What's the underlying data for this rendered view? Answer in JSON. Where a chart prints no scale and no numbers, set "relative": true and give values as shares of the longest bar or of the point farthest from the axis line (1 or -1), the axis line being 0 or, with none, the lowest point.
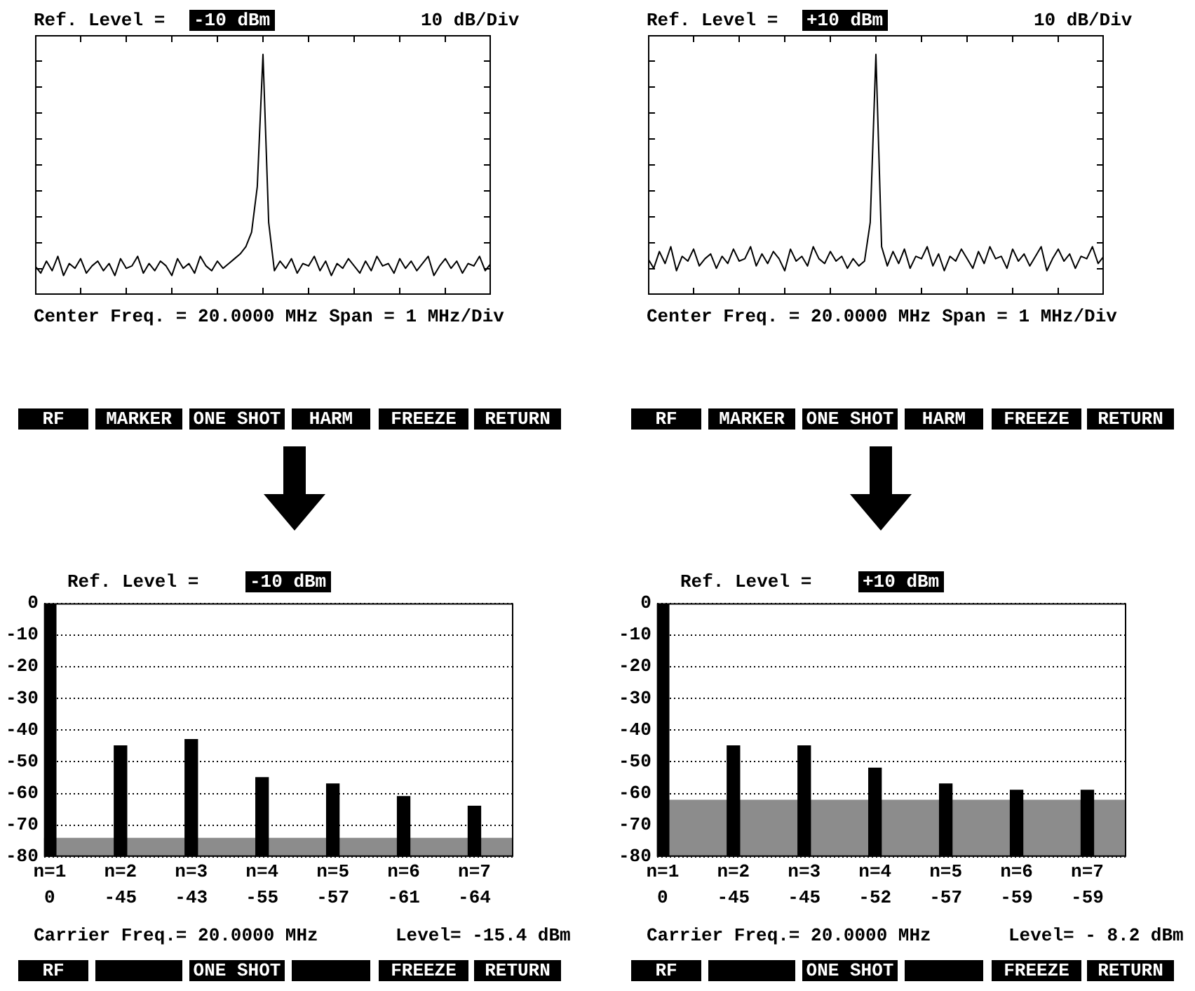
{
  "chart_data": [
    {
      "type": "line",
      "relative": true,
      "color": "#000000",
      "categories": [
        null,
        null,
        null,
        null,
        null,
        null,
        null,
        null,
        null,
        null,
        null,
        null,
        null,
        null,
        null,
        null,
        null,
        null,
        null,
        null,
        null,
        null,
        null,
        null,
        null,
        null,
        null,
        null,
        null,
        null,
        null,
        null,
        null,
        null,
        null,
        null,
        null,
        null,
        null,
        null,
        null,
        null,
        null,
        null,
        null,
        null,
        null,
        null,
        null,
        null,
        null,
        null,
        null,
        null,
        null,
        null,
        null,
        null,
        null,
        null,
        null,
        null,
        null,
        null,
        null,
        null,
        null,
        null,
        null,
        null,
        null,
        null,
        null,
        null,
        null,
        null,
        null,
        null,
        null,
        null,
        null
      ],
      "values": [
        0.12,
        0.09,
        0.14,
        0.1,
        0.16,
        0.08,
        0.13,
        0.11,
        0.15,
        0.09,
        0.12,
        0.14,
        0.1,
        0.13,
        0.08,
        0.15,
        0.11,
        0.12,
        0.16,
        0.09,
        0.13,
        0.1,
        0.14,
        0.12,
        0.08,
        0.15,
        0.11,
        0.13,
        0.09,
        0.16,
        0.12,
        0.1,
        0.14,
        0.11,
        0.13,
        0.15,
        0.17,
        0.2,
        0.26,
        0.45,
        1,
        0.3,
        0.1,
        0.14,
        0.11,
        0.15,
        0.09,
        0.13,
        0.12,
        0.16,
        0.1,
        0.14,
        0.08,
        0.13,
        0.11,
        0.15,
        0.12,
        0.09,
        0.14,
        0.1,
        0.16,
        0.12,
        0.13,
        0.09,
        0.15,
        0.11,
        0.14,
        0.1,
        0.13,
        0.16,
        0.08,
        0.12,
        0.15,
        0.11,
        0.14,
        0.09,
        0.13,
        0.12,
        0.16,
        0.1,
        0.13
      ],
      "annotations": [
        "Ref. Level =",
        "-10 dBm",
        "10 dB/Div",
        "Center Freq. = 20.0000 MHz Span = 1 MHz/Div",
        "RF",
        "MARKER",
        "ONE SHOT",
        "HARM",
        "FREEZE",
        "RETURN"
      ]
    },
    {
      "type": "line",
      "relative": true,
      "color": "#000000",
      "categories": [
        null,
        null,
        null,
        null,
        null,
        null,
        null,
        null,
        null,
        null,
        null,
        null,
        null,
        null,
        null,
        null,
        null,
        null,
        null,
        null,
        null,
        null,
        null,
        null,
        null,
        null,
        null,
        null,
        null,
        null,
        null,
        null,
        null,
        null,
        null,
        null,
        null,
        null,
        null,
        null,
        null,
        null,
        null,
        null,
        null,
        null,
        null,
        null,
        null,
        null,
        null,
        null,
        null,
        null,
        null,
        null,
        null,
        null,
        null,
        null,
        null,
        null,
        null,
        null,
        null,
        null,
        null,
        null,
        null,
        null,
        null,
        null,
        null,
        null,
        null,
        null,
        null,
        null,
        null,
        null,
        null
      ],
      "values": [
        0.15,
        0.11,
        0.18,
        0.13,
        0.2,
        0.1,
        0.16,
        0.14,
        0.19,
        0.12,
        0.15,
        0.17,
        0.11,
        0.16,
        0.13,
        0.19,
        0.14,
        0.15,
        0.2,
        0.12,
        0.17,
        0.13,
        0.18,
        0.15,
        0.1,
        0.19,
        0.14,
        0.16,
        0.12,
        0.2,
        0.15,
        0.13,
        0.18,
        0.14,
        0.16,
        0.11,
        0.15,
        0.12,
        0.14,
        0.3,
        1,
        0.2,
        0.12,
        0.18,
        0.13,
        0.19,
        0.11,
        0.16,
        0.15,
        0.2,
        0.12,
        0.17,
        0.1,
        0.16,
        0.14,
        0.19,
        0.15,
        0.11,
        0.18,
        0.13,
        0.2,
        0.15,
        0.16,
        0.11,
        0.19,
        0.14,
        0.17,
        0.12,
        0.16,
        0.2,
        0.1,
        0.15,
        0.19,
        0.14,
        0.17,
        0.11,
        0.16,
        0.15,
        0.2,
        0.13,
        0.16
      ],
      "annotations": [
        "Ref. Level =",
        "+10 dBm",
        "10 dB/Div",
        "Center Freq. = 20.0000 MHz Span = 1 MHz/Div",
        "RF",
        "MARKER",
        "ONE SHOT",
        "HARM",
        "FREEZE",
        "RETURN"
      ]
    },
    {
      "type": "bar",
      "color": "#000000",
      "categories": [
        "n=1",
        "n=2",
        "n=3",
        "n=4",
        "n=5",
        "n=6",
        "n=7"
      ],
      "base": [
        -80,
        -80,
        -80,
        -80,
        -80,
        -80,
        -80
      ],
      "values": [
        80,
        35,
        37,
        25,
        23,
        19,
        16
      ],
      "value_labels": [
        "0",
        "-45",
        "-43",
        "-55",
        "-57",
        "-61",
        "-64"
      ],
      "ylim": [
        -80,
        0
      ],
      "yticks": [
        0,
        -10,
        -20,
        -30,
        -40,
        -50,
        -60,
        -70,
        -80
      ],
      "grid": "y",
      "bands": [
        {
          "axis": "y",
          "from": -80,
          "to": -74,
          "color": "#8c8c8c"
        }
      ],
      "annotations": [
        "Ref. Level =",
        "-10 dBm",
        "Carrier Freq.= 20.0000 MHz",
        "Level= -15.4 dBm",
        "RF",
        "ONE SHOT",
        "FREEZE",
        "RETURN"
      ]
    },
    {
      "type": "bar",
      "color": "#000000",
      "categories": [
        "n=1",
        "n=2",
        "n=3",
        "n=4",
        "n=5",
        "n=6",
        "n=7"
      ],
      "base": [
        -80,
        -80,
        -80,
        -80,
        -80,
        -80,
        -80
      ],
      "values": [
        80,
        35,
        35,
        28,
        23,
        21,
        21
      ],
      "value_labels": [
        "0",
        "-45",
        "-45",
        "-52",
        "-57",
        "-59",
        "-59"
      ],
      "ylim": [
        -80,
        0
      ],
      "yticks": [
        0,
        -10,
        -20,
        -30,
        -40,
        -50,
        -60,
        -70,
        -80
      ],
      "grid": "y",
      "bands": [
        {
          "axis": "y",
          "from": -80,
          "to": -62,
          "color": "#8c8c8c"
        }
      ],
      "annotations": [
        "Ref. Level =",
        "+10 dBm",
        "Carrier Freq.= 20.0000 MHz",
        "Level= - 8.2 dBm",
        "RF",
        "ONE SHOT",
        "FREEZE",
        "RETURN"
      ]
    }
  ]
}
